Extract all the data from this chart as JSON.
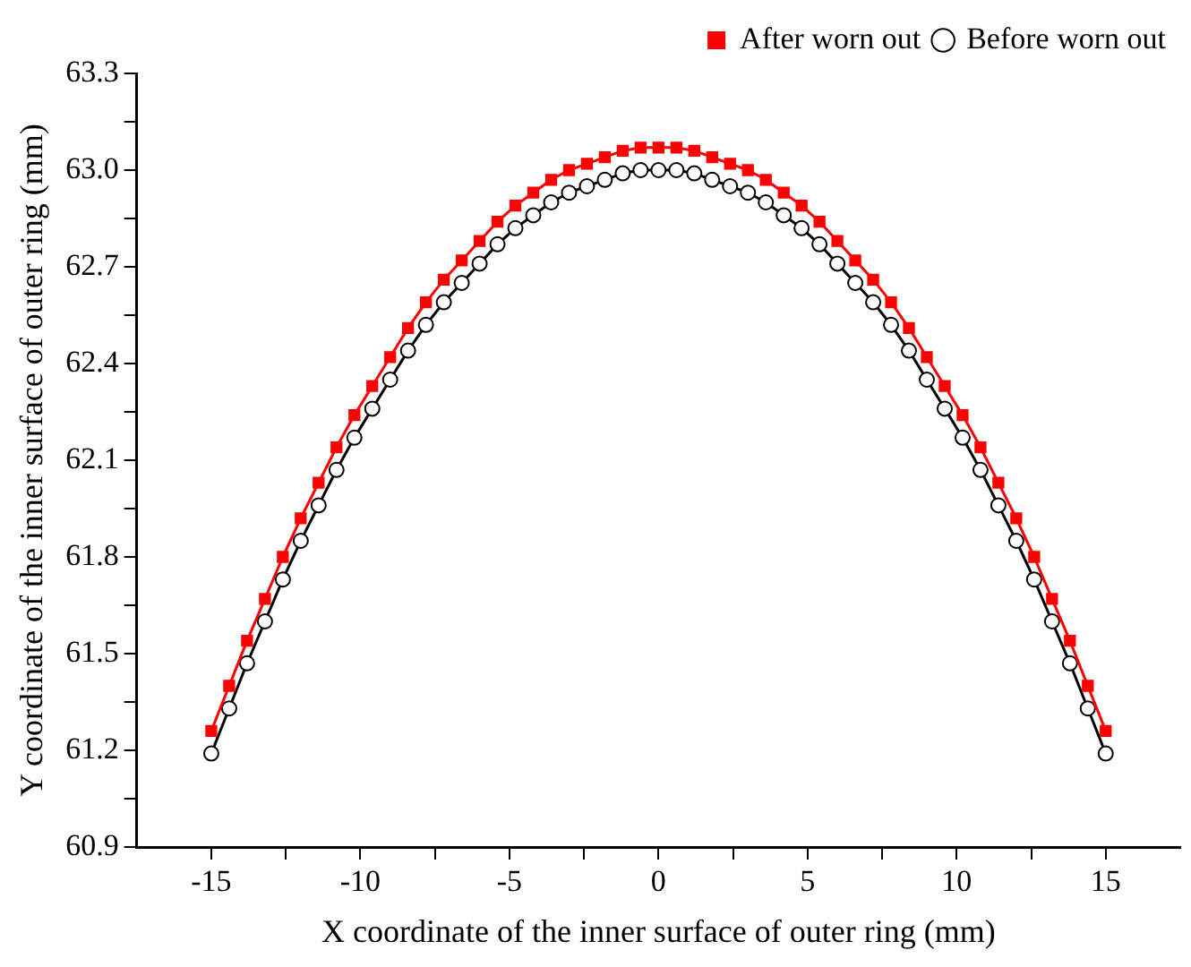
{
  "chart_data": {
    "type": "line",
    "xlabel": "X coordinate of the inner surface of outer ring (mm)",
    "ylabel": "Y coordinate of the inner surface of outer ring (mm)",
    "x": [
      -15,
      -14.4,
      -13.8,
      -13.2,
      -12.6,
      -12,
      -11.4,
      -10.8,
      -10.2,
      -9.6,
      -9,
      -8.4,
      -7.8,
      -7.2,
      -6.6,
      -6,
      -5.4,
      -4.8,
      -4.2,
      -3.6,
      -3,
      -2.4,
      -1.8,
      -1.2,
      -0.6,
      0,
      0.6,
      1.2,
      1.8,
      2.4,
      3,
      3.6,
      4.2,
      4.8,
      5.4,
      6,
      6.6,
      7.2,
      7.8,
      8.4,
      9,
      9.6,
      10.2,
      10.8,
      11.4,
      12,
      12.6,
      13.2,
      13.8,
      14.4,
      15
    ],
    "series": [
      {
        "name": "After worn out",
        "color": "#ff0000",
        "marker": "square",
        "values": [
          61.26,
          61.4,
          61.54,
          61.67,
          61.8,
          61.92,
          62.03,
          62.14,
          62.24,
          62.33,
          62.42,
          62.51,
          62.59,
          62.66,
          62.72,
          62.78,
          62.84,
          62.89,
          62.93,
          62.97,
          63.0,
          63.02,
          63.04,
          63.06,
          63.07,
          63.07,
          63.07,
          63.06,
          63.04,
          63.02,
          63.0,
          62.97,
          62.93,
          62.89,
          62.84,
          62.78,
          62.72,
          62.66,
          62.59,
          62.51,
          62.42,
          62.33,
          62.24,
          62.14,
          62.03,
          61.92,
          61.8,
          61.67,
          61.54,
          61.4,
          61.26
        ]
      },
      {
        "name": "Before worn out",
        "color": "#000000",
        "marker": "circle",
        "values": [
          61.19,
          61.33,
          61.47,
          61.6,
          61.73,
          61.85,
          61.96,
          62.07,
          62.17,
          62.26,
          62.35,
          62.44,
          62.52,
          62.59,
          62.65,
          62.71,
          62.77,
          62.82,
          62.86,
          62.9,
          62.93,
          62.95,
          62.97,
          62.99,
          63.0,
          63.0,
          63.0,
          62.99,
          62.97,
          62.95,
          62.93,
          62.9,
          62.86,
          62.82,
          62.77,
          62.71,
          62.65,
          62.59,
          62.52,
          62.44,
          62.35,
          62.26,
          62.17,
          62.07,
          61.96,
          61.85,
          61.73,
          61.6,
          61.47,
          61.33,
          61.19
        ]
      }
    ],
    "xlim": [
      -17.5,
      17.5
    ],
    "xticks": [
      -15,
      {
        "value": -12.5,
        "label": null
      },
      -10,
      {
        "value": -7.5,
        "label": null
      },
      -5,
      {
        "value": -2.5,
        "label": null
      },
      0,
      {
        "value": 2.5,
        "label": null
      },
      5,
      {
        "value": 7.5,
        "label": null
      },
      10,
      {
        "value": 12.5,
        "label": null
      },
      15
    ],
    "ylim": [
      60.9,
      63.3
    ],
    "yticks": [
      {
        "value": 60.9,
        "label": "60.9"
      },
      {
        "value": 61.05,
        "label": null
      },
      {
        "value": 61.2,
        "label": "61.2"
      },
      {
        "value": 61.35,
        "label": null
      },
      {
        "value": 61.5,
        "label": "61.5"
      },
      {
        "value": 61.65,
        "label": null
      },
      {
        "value": 61.8,
        "label": "61.8"
      },
      {
        "value": 61.95,
        "label": null
      },
      {
        "value": 62.1,
        "label": "62.1"
      },
      {
        "value": 62.25,
        "label": null
      },
      {
        "value": 62.4,
        "label": "62.4"
      },
      {
        "value": 62.55,
        "label": null
      },
      {
        "value": 62.7,
        "label": "62.7"
      },
      {
        "value": 62.85,
        "label": null
      },
      {
        "value": 63.0,
        "label": "63.0"
      },
      {
        "value": 63.15,
        "label": null
      },
      {
        "value": 63.3,
        "label": "63.3"
      }
    ],
    "grid": false,
    "legend": "top right",
    "line_style": "solid"
  }
}
